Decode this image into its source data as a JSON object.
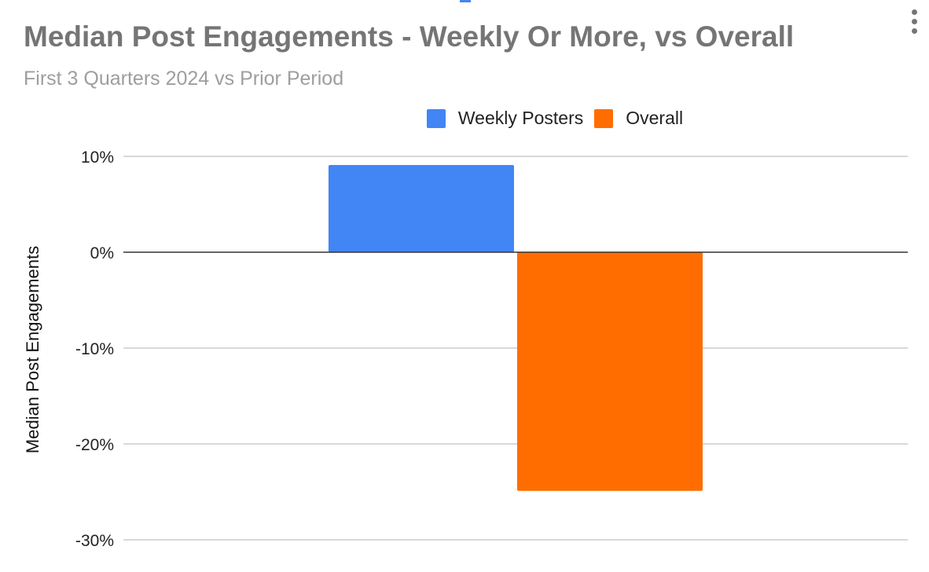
{
  "chart_data": {
    "type": "bar",
    "title": "Median Post Engagements - Weekly Or More, vs Overall",
    "subtitle": "First 3 Quarters 2024 vs Prior Period",
    "xlabel": "",
    "ylabel": "Median Post Engagements",
    "categories": [
      ""
    ],
    "series": [
      {
        "name": "Weekly Posters",
        "values": [
          9.1
        ],
        "color": "#4285f4"
      },
      {
        "name": "Overall",
        "values": [
          -24.9
        ],
        "color": "#ff6d01"
      }
    ],
    "ylim": [
      -30,
      10
    ],
    "yticks": [
      10,
      0,
      -10,
      -20,
      -30
    ],
    "ytick_labels": [
      "10%",
      "0%",
      "-10%",
      "-20%",
      "-30%"
    ],
    "grid": true,
    "legend_position": "top"
  },
  "menu_icon": "more-vert-icon"
}
